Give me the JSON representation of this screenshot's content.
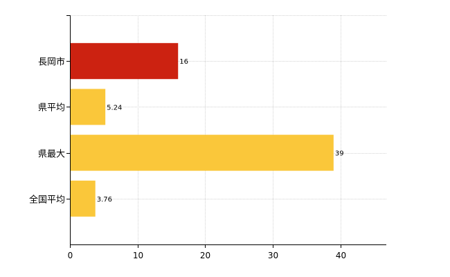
{
  "chart_data": {
    "type": "bar",
    "orientation": "horizontal",
    "title": "",
    "xlabel": "",
    "ylabel": "",
    "categories": [
      "長岡市",
      "県平均",
      "県最大",
      "全国平均"
    ],
    "values": [
      16,
      5.24,
      39,
      3.76
    ],
    "data_labels": [
      "16",
      "5.24",
      "39",
      "3.76"
    ],
    "bar_colors": [
      "#cc2211",
      "#fac73a",
      "#fac73a",
      "#fac73a"
    ],
    "x_ticks": [
      0,
      10,
      20,
      30,
      40
    ],
    "x_tick_labels": [
      "0",
      "10",
      "20",
      "30",
      "40"
    ],
    "xlim": [
      0,
      46.8
    ],
    "grid": true,
    "legend": "none"
  }
}
